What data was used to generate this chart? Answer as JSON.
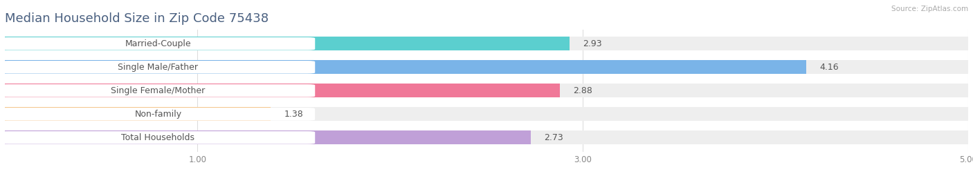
{
  "title": "Median Household Size in Zip Code 75438",
  "source": "Source: ZipAtlas.com",
  "categories": [
    "Married-Couple",
    "Single Male/Father",
    "Single Female/Mother",
    "Non-family",
    "Total Households"
  ],
  "values": [
    2.93,
    4.16,
    2.88,
    1.38,
    2.73
  ],
  "bar_colors": [
    "#5bcfcf",
    "#7ab4e8",
    "#f07898",
    "#f5c890",
    "#c0a0d8"
  ],
  "bar_bg_color": "#eeeeee",
  "xlim": [
    0,
    5.0
  ],
  "xstart": 0.0,
  "xticks": [
    1.0,
    3.0,
    5.0
  ],
  "background_color": "#ffffff",
  "title_color": "#4a6080",
  "title_fontsize": 13,
  "label_fontsize": 9,
  "value_fontsize": 9,
  "source_color": "#aaaaaa",
  "value_color": "#555555",
  "label_color": "#555555"
}
